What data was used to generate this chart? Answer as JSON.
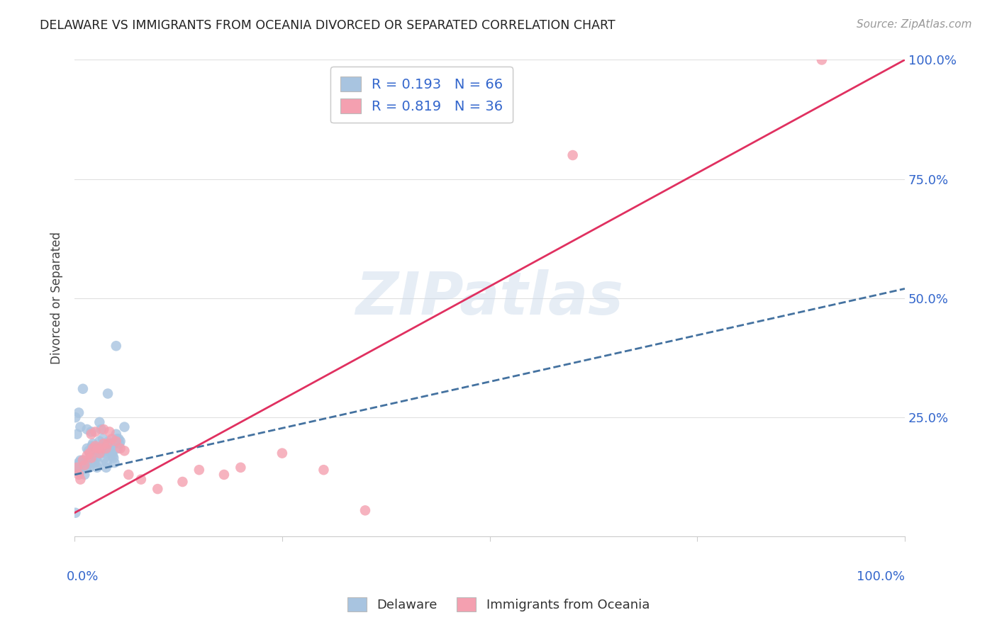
{
  "title": "DELAWARE VS IMMIGRANTS FROM OCEANIA DIVORCED OR SEPARATED CORRELATION CHART",
  "source": "Source: ZipAtlas.com",
  "ylabel": "Divorced or Separated",
  "blue_R": 0.193,
  "blue_N": 66,
  "pink_R": 0.819,
  "pink_N": 36,
  "blue_color": "#a8c4e0",
  "pink_color": "#f4a0b0",
  "blue_line_color": "#4472a0",
  "pink_line_color": "#e03060",
  "legend_text_color": "#3366cc",
  "axis_label_color": "#3366cc",
  "watermark": "ZIPatlas",
  "xlim": [
    0.0,
    1.0
  ],
  "ylim": [
    0.0,
    1.0
  ],
  "grid_color": "#e0e0e0",
  "blue_scatter_x": [
    0.002,
    0.003,
    0.004,
    0.005,
    0.006,
    0.007,
    0.008,
    0.009,
    0.01,
    0.011,
    0.012,
    0.013,
    0.014,
    0.015,
    0.016,
    0.017,
    0.018,
    0.019,
    0.02,
    0.021,
    0.022,
    0.023,
    0.024,
    0.025,
    0.026,
    0.027,
    0.028,
    0.029,
    0.03,
    0.031,
    0.032,
    0.033,
    0.034,
    0.035,
    0.036,
    0.037,
    0.038,
    0.039,
    0.04,
    0.041,
    0.042,
    0.043,
    0.044,
    0.045,
    0.046,
    0.047,
    0.048,
    0.049,
    0.05,
    0.051,
    0.052,
    0.053,
    0.054,
    0.055,
    0.001,
    0.003,
    0.005,
    0.007,
    0.01,
    0.015,
    0.02,
    0.03,
    0.04,
    0.05,
    0.06,
    0.001
  ],
  "blue_scatter_y": [
    0.145,
    0.14,
    0.15,
    0.155,
    0.135,
    0.16,
    0.15,
    0.145,
    0.16,
    0.15,
    0.13,
    0.155,
    0.145,
    0.185,
    0.15,
    0.18,
    0.145,
    0.175,
    0.165,
    0.19,
    0.195,
    0.185,
    0.155,
    0.175,
    0.165,
    0.145,
    0.155,
    0.185,
    0.2,
    0.175,
    0.225,
    0.19,
    0.205,
    0.18,
    0.165,
    0.175,
    0.145,
    0.155,
    0.18,
    0.2,
    0.195,
    0.185,
    0.195,
    0.175,
    0.17,
    0.165,
    0.155,
    0.195,
    0.215,
    0.205,
    0.185,
    0.205,
    0.195,
    0.2,
    0.25,
    0.215,
    0.26,
    0.23,
    0.31,
    0.225,
    0.22,
    0.24,
    0.3,
    0.4,
    0.23,
    0.05
  ],
  "pink_scatter_x": [
    0.003,
    0.005,
    0.007,
    0.01,
    0.012,
    0.015,
    0.018,
    0.02,
    0.022,
    0.025,
    0.028,
    0.03,
    0.032,
    0.035,
    0.038,
    0.04,
    0.042,
    0.045,
    0.05,
    0.055,
    0.06,
    0.065,
    0.08,
    0.1,
    0.13,
    0.15,
    0.18,
    0.2,
    0.25,
    0.3,
    0.35,
    0.02,
    0.025,
    0.035,
    0.6,
    0.9
  ],
  "pink_scatter_y": [
    0.145,
    0.13,
    0.12,
    0.16,
    0.15,
    0.17,
    0.175,
    0.165,
    0.185,
    0.19,
    0.185,
    0.175,
    0.185,
    0.195,
    0.185,
    0.195,
    0.22,
    0.205,
    0.2,
    0.185,
    0.18,
    0.13,
    0.12,
    0.1,
    0.115,
    0.14,
    0.13,
    0.145,
    0.175,
    0.14,
    0.055,
    0.215,
    0.22,
    0.225,
    0.8,
    1.0
  ],
  "blue_line_x0": 0.0,
  "blue_line_y0": 0.13,
  "blue_line_x1": 1.0,
  "blue_line_y1": 0.52,
  "pink_line_x0": 0.0,
  "pink_line_y0": 0.05,
  "pink_line_x1": 1.0,
  "pink_line_y1": 1.0
}
